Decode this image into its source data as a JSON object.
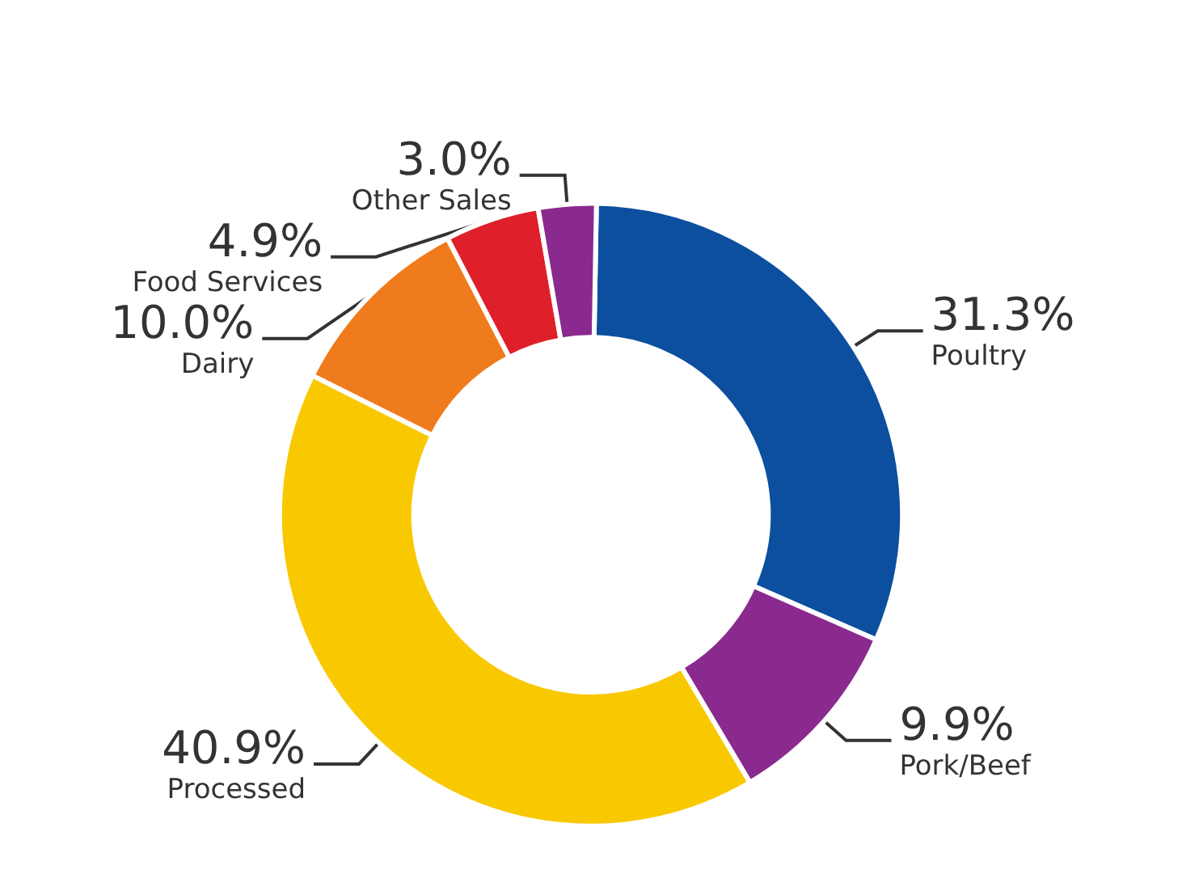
{
  "chart_data": {
    "type": "donut",
    "categories": [
      "Poultry",
      "Pork/Beef",
      "Processed",
      "Dairy",
      "Food Services",
      "Other Sales"
    ],
    "values": [
      31.3,
      9.9,
      40.9,
      10.0,
      4.9,
      3.0
    ],
    "value_labels": [
      "31.3%",
      "9.9%",
      "40.9%",
      "10.0%",
      "4.9%",
      "3.0%"
    ],
    "colors": [
      "#0b4f9e",
      "#8a2a8e",
      "#f8c900",
      "#ef7b1c",
      "#df1f2a",
      "#8a2a8e"
    ],
    "legend": false
  }
}
